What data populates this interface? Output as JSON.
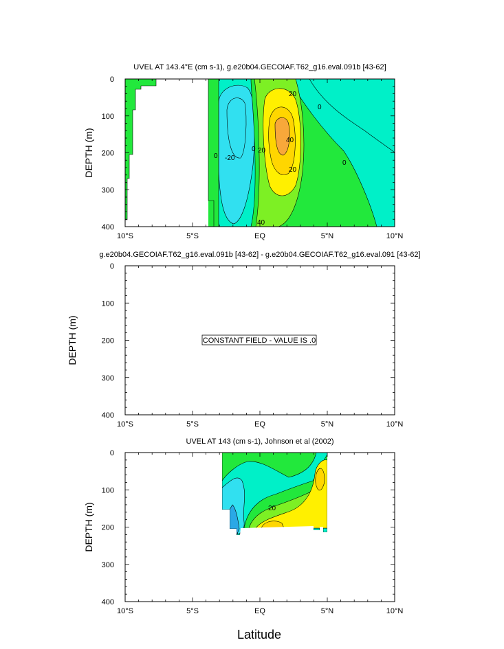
{
  "colors": {
    "c_neg40": "#2aa8e6",
    "c_neg20": "#31e0f0",
    "c_0": "#00f0c8",
    "c_20": "#22e83c",
    "c_40": "#7df024",
    "c_60": "#fff000",
    "c_80": "#ffd600",
    "c_100": "#f8a83a",
    "land": "#ffffff",
    "line": "#000000"
  },
  "x_axis": {
    "label": "Latitude",
    "ticks": [
      "10°S",
      "5°S",
      "EQ",
      "5°N",
      "10°N"
    ]
  },
  "y_axis": {
    "label": "DEPTH (m)",
    "ticks": [
      "0",
      "100",
      "200",
      "300",
      "400"
    ]
  },
  "note": {
    "text": "CONSTANT FIELD - VALUE IS .0"
  },
  "chart_data": [
    {
      "type": "heatmap",
      "title": "UVEL AT 143.4°E (cm s-1), g.e20b04.GECOIAF.T62_g16.eval.091b [43-62]",
      "xlabel": "",
      "ylabel": "DEPTH (m)",
      "xlim": [
        -10,
        10
      ],
      "ylim": [
        400,
        0
      ],
      "contour_labels": [
        "20",
        "0",
        "-20",
        "0",
        "20",
        "40",
        "20",
        "0",
        "0",
        "40"
      ],
      "bands": [
        {
          "value": 0,
          "color": "c_0",
          "region": "background east of 3.5°S, 0–400 m"
        },
        {
          "value": -20,
          "color": "c_neg20",
          "region": "3°S–1°S, 40–320 m"
        },
        {
          "value": 0,
          "color": "c_20",
          "region": "near 4°S, full depth"
        },
        {
          "value": 10,
          "color": "c_20",
          "region": "0°–8°N, 200–400 m"
        },
        {
          "value": 20,
          "color": "c_40",
          "region": "0°–3°N, 20–330 m"
        },
        {
          "value": 30,
          "color": "c_60",
          "region": "0.5°–2.5°N, 80–280 m"
        },
        {
          "value": 40,
          "color": "c_80",
          "region": "0.8°–2°N, 120–240 m"
        },
        {
          "value": 50,
          "color": "c_100",
          "region": "1.2°–1.8°N, 150–220 m"
        }
      ]
    },
    {
      "type": "heatmap",
      "title": "g.e20b04.GECOIAF.T62_g16.eval.091b [43-62] - g.e20b04.GECOIAF.T62_g16.eval.091 [43-62]",
      "xlabel": "",
      "ylabel": "DEPTH (m)",
      "xlim": [
        -10,
        10
      ],
      "ylim": [
        400,
        0
      ],
      "bands": [],
      "annotation": "CONSTANT FIELD - VALUE IS .0"
    },
    {
      "type": "heatmap",
      "title": "UVEL AT 143 (cm s-1), Johnson et al (2002)",
      "xlabel": "Latitude",
      "ylabel": "DEPTH (m)",
      "xlim": [
        -10,
        10
      ],
      "ylim": [
        400,
        0
      ],
      "contour_labels": [
        "20"
      ],
      "bands": [
        {
          "value": 0,
          "color": "c_0",
          "region": "2.8°S–5°N, 0–200 m"
        },
        {
          "value": -20,
          "color": "c_neg20",
          "region": "2.8°S–1.5°S, 60–210 m"
        },
        {
          "value": -40,
          "color": "c_neg40",
          "region": "2.6°S–1.8°S, 150–220 m"
        },
        {
          "value": 10,
          "color": "c_20",
          "region": "west surface and 4–5°N near surface"
        },
        {
          "value": 20,
          "color": "c_40",
          "region": "0°–5°N, 80–210 m"
        },
        {
          "value": 30,
          "color": "c_60",
          "region": "0.5°–5°N, 130–210 m"
        },
        {
          "value": 40,
          "color": "c_80",
          "region": "near 0.5°N, 190–210 m and 4.5°N, 70–110 m"
        }
      ]
    }
  ]
}
